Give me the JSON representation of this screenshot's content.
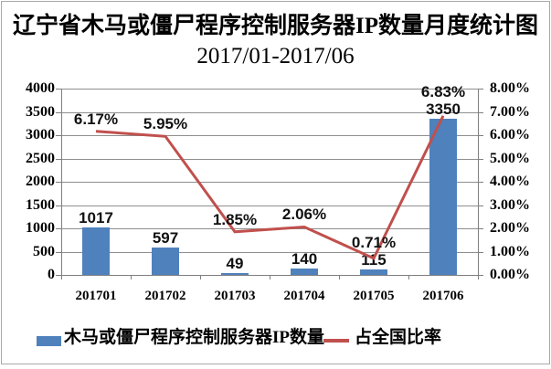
{
  "chart": {
    "title_line1": "辽宁省木马或僵尸程序控制服务器IP数量月度统计图",
    "title_line2": "2017/01-2017/06",
    "legend": {
      "bars": "木马或僵尸程序控制服务器IP数量",
      "line": "占全国比率"
    },
    "colors": {
      "bar": "#4F81BD",
      "line": "#C0504D",
      "grid": "#8E8E8E",
      "axis": "#7F7F7F",
      "text": "#000000"
    }
  },
  "chart_data": {
    "type": "bar",
    "subtype": "combo bar + line, dual y-axis",
    "title": "辽宁省木马或僵尸程序控制服务器IP数量月度统计图 2017/01-2017/06",
    "categories": [
      "201701",
      "201702",
      "201703",
      "201704",
      "201705",
      "201706"
    ],
    "series": [
      {
        "name": "木马或僵尸程序控制服务器IP数量",
        "type": "bar",
        "axis": "left",
        "values": [
          1017,
          597,
          49,
          140,
          115,
          3350
        ],
        "labels": [
          "1017",
          "597",
          "49",
          "140",
          "115",
          "3350"
        ],
        "color": "#4F81BD"
      },
      {
        "name": "占全国比率",
        "type": "line",
        "axis": "right",
        "values": [
          6.17,
          5.95,
          1.85,
          2.06,
          0.71,
          6.83
        ],
        "labels": [
          "6.17%",
          "5.95%",
          "1.85%",
          "2.06%",
          "0.71%",
          "6.83%"
        ],
        "color": "#C0504D"
      }
    ],
    "left_axis": {
      "min": 0,
      "max": 4000,
      "step": 500,
      "ticks": [
        "0",
        "500",
        "1000",
        "1500",
        "2000",
        "2500",
        "3000",
        "3500",
        "4000"
      ]
    },
    "right_axis": {
      "min": 0,
      "max": 8,
      "step": 1,
      "ticks": [
        "0.00%",
        "1.00%",
        "2.00%",
        "3.00%",
        "4.00%",
        "5.00%",
        "6.00%",
        "7.00%",
        "8.00%"
      ]
    },
    "grid": true,
    "legend_position": "bottom"
  }
}
